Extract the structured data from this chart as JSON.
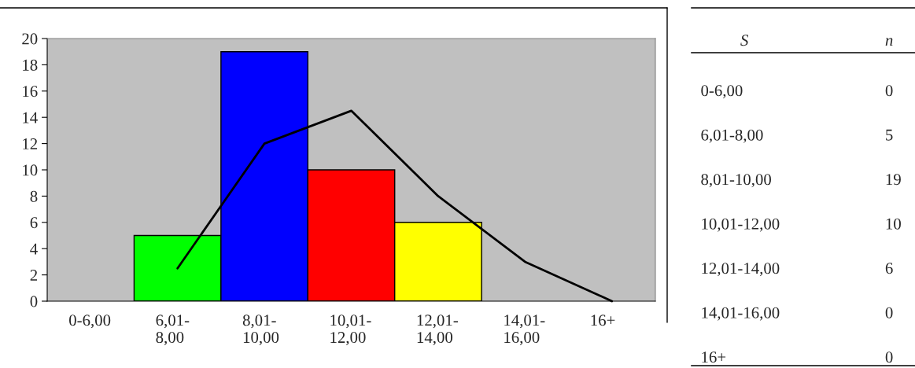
{
  "chart_data": [
    {
      "type": "bar",
      "categories": [
        "0-6,00",
        "6,01-\n8,00",
        "8,01-\n10,00",
        "10,01-\n12,00",
        "12,01-\n14,00",
        "14,01-\n16,00",
        "16+"
      ],
      "series": [
        {
          "colors": [
            null,
            "#00ff00",
            "#0000ff",
            "#ff0000",
            "#ffff00",
            null,
            null
          ],
          "values": [
            0,
            5,
            19,
            10,
            6,
            0,
            0
          ]
        },
        {
          "type": "line",
          "color": "#000000",
          "values": [
            null,
            2.5,
            12,
            14.5,
            8,
            3,
            0
          ]
        }
      ],
      "ylim": [
        0,
        20
      ],
      "yticks": [
        0,
        2,
        4,
        6,
        8,
        10,
        12,
        14,
        16,
        18,
        20
      ],
      "grid": false,
      "legend": false
    },
    {
      "type": "other",
      "annotations": [
        "S",
        "n"
      ],
      "categories": [
        "0-6,00",
        "6,01-8,00",
        "8,01-10,00",
        "10,01-12,00",
        "12,01-14,00",
        "14,01-16,00",
        "16+"
      ],
      "value_labels": [
        "0",
        "5",
        "19",
        "10",
        "6",
        "0",
        "0"
      ]
    }
  ]
}
